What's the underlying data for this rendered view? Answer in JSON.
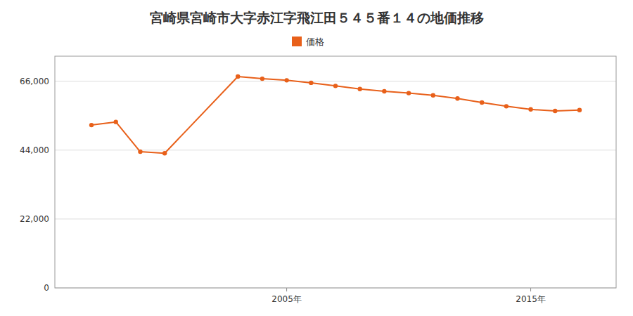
{
  "chart_data": {
    "type": "line",
    "title": "宮崎県宮崎市大字赤江字飛江田５４５番１４の地価推移",
    "x": [
      1997,
      1998,
      1999,
      2000,
      2003,
      2004,
      2005,
      2006,
      2007,
      2008,
      2009,
      2010,
      2011,
      2012,
      2013,
      2014,
      2015,
      2016,
      2017
    ],
    "series": [
      {
        "name": "価格",
        "color": "#e8601a",
        "values": [
          52000,
          53000,
          43500,
          43000,
          67500,
          66800,
          66300,
          65500,
          64500,
          63500,
          62800,
          62200,
          61500,
          60500,
          59200,
          58000,
          57000,
          56500,
          56800
        ]
      }
    ],
    "xlim": [
      1995.5,
      2018.5
    ],
    "xticks": [
      {
        "value": 2005,
        "label": "2005年"
      },
      {
        "value": 2015,
        "label": "2015年"
      }
    ],
    "ylim": [
      0,
      74000
    ],
    "yticks": [
      0,
      {
        "value": 22000,
        "label": "22,000"
      },
      {
        "value": 44000,
        "label": "44,000"
      },
      {
        "value": 66000,
        "label": "66,000"
      }
    ],
    "grid": true,
    "legend": "top",
    "marker": "circle"
  }
}
